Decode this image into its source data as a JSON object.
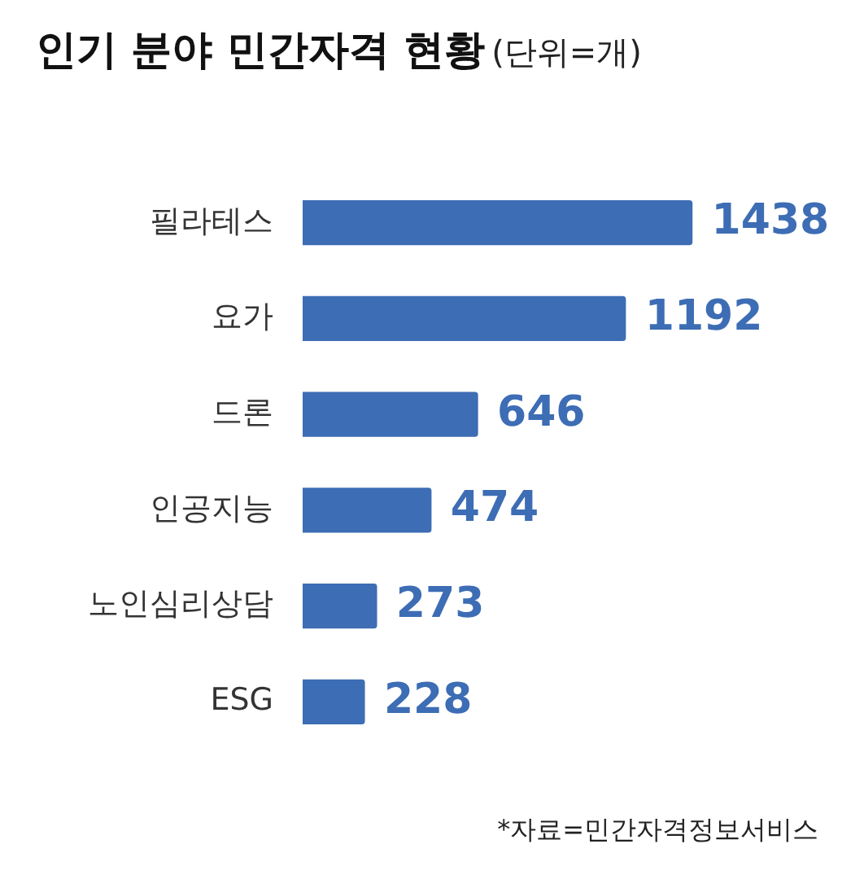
{
  "chart_data": {
    "type": "bar",
    "orientation": "horizontal",
    "title": "인기 분야 민간자격 현황",
    "subtitle": "(단위=개)",
    "categories": [
      "필라테스",
      "요가",
      "드론",
      "인공지능",
      "노인심리상담",
      "ESG"
    ],
    "values": [
      1438,
      1192,
      646,
      474,
      273,
      228
    ],
    "color": "#3d6db4",
    "data_labels": true,
    "grid": false,
    "legend": false,
    "tick_labels": "y",
    "annotations": [
      "*자료=민간자격정보서비스"
    ]
  }
}
